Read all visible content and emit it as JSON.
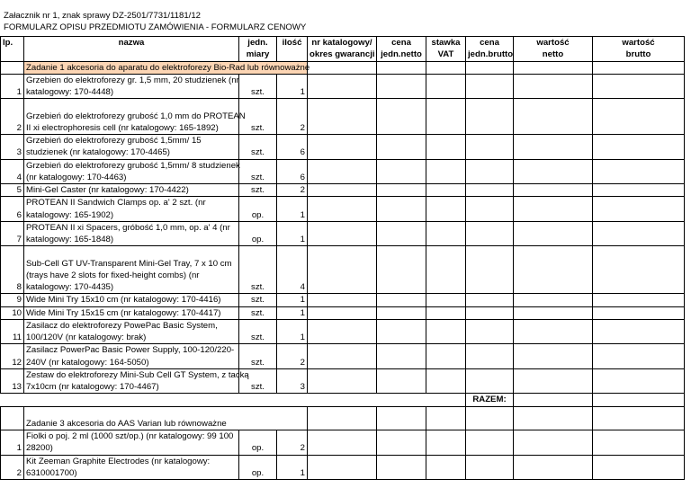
{
  "header": {
    "lines": [
      "Załacznik nr 1, znak sprawy DZ-2501/7731/1181/12",
      "FORMULARZ OPISU PRZEDMIOTU ZAMÓWIENIA - FORMULARZ CENOWY"
    ]
  },
  "table": {
    "columns": [
      [
        "lp."
      ],
      [
        "nazwa"
      ],
      [
        "jedn.",
        "miary"
      ],
      [
        "ilość"
      ],
      [
        "nr katalogowy/",
        "okres gwarancji"
      ],
      [
        "cena",
        "jedn.netto"
      ],
      [
        "stawka",
        "VAT"
      ],
      [
        "cena",
        "jedn.brutto"
      ],
      [
        "wartość",
        "netto"
      ],
      [
        "wartość",
        "brutto"
      ]
    ],
    "sections": [
      {
        "title": "Zadanie 1 akcesoria do aparatu do elektroforezy Bio-Rad lub równoważne",
        "rows": [
          {
            "lp": 1,
            "name": [
              "Grzebien do elektroforezy gr. 1,5 mm, 20 studzienek (nr",
              "katalogowy: 170-4448)"
            ],
            "unit": "szt.",
            "qty": 1
          },
          {
            "lp": 2,
            "name": [
              "Grzebień do elektroforezy grubość 1,0 mm do PROTEAN",
              "II xi electrophoresis cell  (nr katalogowy: 165-1892)"
            ],
            "unit": "szt.",
            "qty": 2
          },
          {
            "lp": 3,
            "name": [
              "Grzebień do elektroforezy grubość 1,5mm/ 15",
              "studzienek (nr katalogowy: 170-4465)"
            ],
            "unit": "szt.",
            "qty": 6
          },
          {
            "lp": 4,
            "name": [
              "Grzebień do elektroforezy grubość 1,5mm/ 8 studzienek",
              "(nr katalogowy: 170-4463)"
            ],
            "unit": "szt.",
            "qty": 6
          },
          {
            "lp": 5,
            "name": [
              "Mini-Gel Caster (nr katalogowy: 170-4422)"
            ],
            "unit": "szt.",
            "qty": 2
          },
          {
            "lp": 6,
            "name": [
              "PROTEAN II Sandwich Clamps op. a' 2 szt. (nr",
              "katalogowy: 165-1902)"
            ],
            "unit": "op.",
            "qty": 1
          },
          {
            "lp": 7,
            "name": [
              "PROTEAN II xi Spacers, gróbość 1,0 mm, op. a' 4 (nr",
              "katalogowy: 165-1848)"
            ],
            "unit": "op.",
            "qty": 1
          },
          {
            "lp": 8,
            "name": [
              "Sub-Cell GT UV-Transparent Mini-Gel Tray, 7 x 10 cm",
              "(trays have 2 slots for fixed-height combs) (nr",
              "katalogowy: 170-4435)"
            ],
            "unit": "szt.",
            "qty": 4
          },
          {
            "lp": 9,
            "name": [
              "Wide Mini Try 15x10 cm (nr katalogowy: 170-4416)"
            ],
            "unit": "szt.",
            "qty": 1
          },
          {
            "lp": 10,
            "name": [
              "Wide Mini Try 15x15 cm (nr katalogowy: 170-4417)"
            ],
            "unit": "szt.",
            "qty": 1
          },
          {
            "lp": 11,
            "name": [
              "Zasilacz do elektroforezy PowePac Basic System,",
              "100/120V (nr katalogowy: brak)"
            ],
            "unit": "szt.",
            "qty": 1
          },
          {
            "lp": 12,
            "name": [
              "Zasilacz PowerPac Basic Power Supply, 100-120/220-",
              "240V (nr katalogowy: 164-5050)"
            ],
            "unit": "szt.",
            "qty": 2
          },
          {
            "lp": 13,
            "name": [
              "Zestaw do elektroforezy Mini-Sub Cell GT System, z tacką",
              "7x10cm (nr katalogowy: 170-4467)"
            ],
            "unit": "szt.",
            "qty": 3
          }
        ],
        "total_label": "RAZEM:"
      },
      {
        "title": "Zadanie 3 akcesoria do AAS Varian lub równoważne",
        "rows": [
          {
            "lp": 1,
            "name": [
              "Fiolki o poj.  2 ml (1000 szt/op.) (nr katalogowy: 99 100",
              "28200)"
            ],
            "unit": "op.",
            "qty": 2
          },
          {
            "lp": 2,
            "name": [
              "Kit Zeeman Graphite Electrodes  (nr katalogowy:",
              "6310001700)"
            ],
            "unit": "op.",
            "qty": 1
          }
        ]
      }
    ]
  }
}
